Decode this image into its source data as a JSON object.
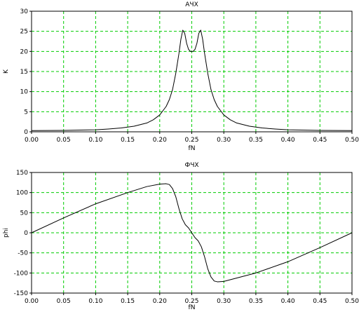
{
  "chart_data": [
    {
      "type": "line",
      "title": "АЧХ",
      "xlabel": "fN",
      "ylabel": "K",
      "xlim": [
        0,
        0.5
      ],
      "ylim": [
        0,
        30
      ],
      "xticks": [
        "0.00",
        "0.05",
        "0.10",
        "0.15",
        "0.20",
        "0.25",
        "0.30",
        "0.35",
        "0.40",
        "0.45",
        "0.50"
      ],
      "yticks": [
        "0",
        "5",
        "10",
        "15",
        "20",
        "25",
        "30"
      ],
      "grid": true,
      "grid_color": "#00cc00",
      "line_color": "#000000",
      "series": [
        {
          "x": [
            0.0,
            0.05,
            0.1,
            0.12,
            0.14,
            0.16,
            0.18,
            0.19,
            0.2,
            0.21,
            0.215,
            0.22,
            0.225,
            0.23,
            0.233,
            0.236,
            0.239,
            0.242,
            0.245,
            0.248,
            0.25,
            0.252,
            0.255,
            0.258,
            0.261,
            0.264,
            0.267,
            0.27,
            0.275,
            0.28,
            0.285,
            0.29,
            0.3,
            0.31,
            0.32,
            0.34,
            0.36,
            0.38,
            0.4,
            0.45,
            0.5
          ],
          "y": [
            0.3,
            0.35,
            0.5,
            0.7,
            0.95,
            1.4,
            2.2,
            3.0,
            4.2,
            6.3,
            8.0,
            10.5,
            14.5,
            19.5,
            23.0,
            25.3,
            24.5,
            22.0,
            20.5,
            20.0,
            20.0,
            20.0,
            20.5,
            22.0,
            24.5,
            25.3,
            23.0,
            19.5,
            14.5,
            10.5,
            8.0,
            6.3,
            4.2,
            3.0,
            2.2,
            1.4,
            0.95,
            0.7,
            0.5,
            0.35,
            0.3
          ]
        }
      ]
    },
    {
      "type": "line",
      "title": "ФЧХ",
      "xlabel": "fN",
      "ylabel": "phi",
      "xlim": [
        0,
        0.5
      ],
      "ylim": [
        -150,
        150
      ],
      "xticks": [
        "0.00",
        "0.05",
        "0.10",
        "0.15",
        "0.20",
        "0.25",
        "0.30",
        "0.35",
        "0.40",
        "0.45",
        "0.50"
      ],
      "yticks": [
        "150",
        "100",
        "50",
        "0",
        "-50",
        "-100",
        "-150"
      ],
      "grid": true,
      "grid_color": "#00cc00",
      "line_color": "#000000",
      "series": [
        {
          "x": [
            0.0,
            0.05,
            0.1,
            0.15,
            0.18,
            0.2,
            0.21,
            0.215,
            0.22,
            0.225,
            0.23,
            0.235,
            0.24,
            0.245,
            0.25,
            0.255,
            0.26,
            0.265,
            0.27,
            0.275,
            0.28,
            0.285,
            0.29,
            0.3,
            0.35,
            0.4,
            0.45,
            0.5
          ],
          "y": [
            0,
            37,
            72,
            100,
            115,
            121,
            122,
            120,
            110,
            90,
            60,
            35,
            20,
            12,
            0,
            -12,
            -20,
            -35,
            -60,
            -90,
            -110,
            -120,
            -122,
            -121,
            -100,
            -72,
            -37,
            0
          ]
        }
      ]
    }
  ]
}
